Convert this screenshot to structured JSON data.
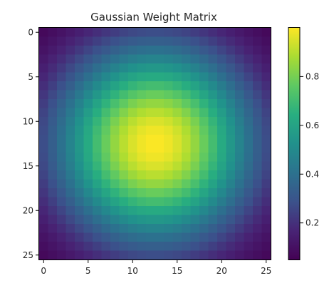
{
  "chart_data": {
    "type": "heatmap",
    "title": "Gaussian Weight Matrix",
    "xlabel": "",
    "ylabel": "",
    "rows": 26,
    "cols": 26,
    "center": [
      12.5,
      12.5
    ],
    "sigma": 7.8,
    "peak_value": 1.0,
    "value_range": [
      0.05,
      1.0
    ],
    "colormap": "viridis",
    "x_ticks": [
      0,
      5,
      10,
      15,
      20,
      25
    ],
    "y_ticks": [
      0,
      5,
      10,
      15,
      20,
      25
    ],
    "colorbar_ticks": [
      0.2,
      0.4,
      0.6,
      0.8
    ],
    "colorbar_tick_labels": [
      "0.2",
      "0.4",
      "0.6",
      "0.8"
    ],
    "grid": false,
    "legend": "none"
  }
}
